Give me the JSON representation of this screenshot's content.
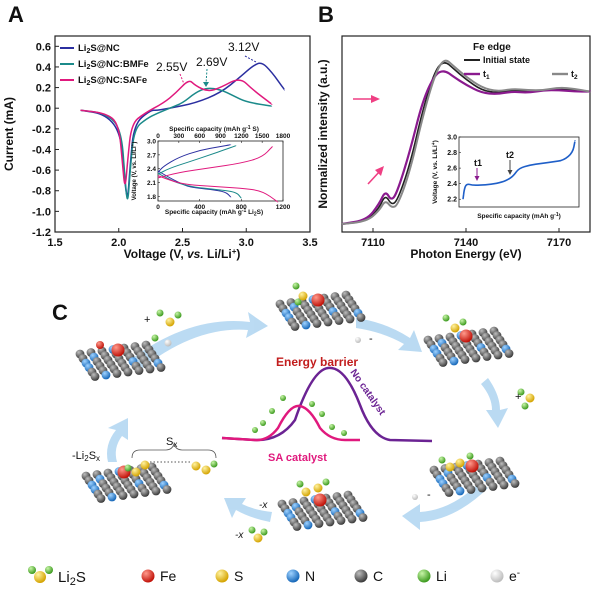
{
  "panels": {
    "a": {
      "letter": "A"
    },
    "b": {
      "letter": "B"
    },
    "c": {
      "letter": "C"
    }
  },
  "chart_data": [
    {
      "panel": "A",
      "type": "line",
      "xlabel": "Voltage (V, vs. Li/Li+)",
      "xlabel_parts": [
        "Voltage (V, ",
        "vs.",
        " Li/Li",
        "+",
        ")"
      ],
      "ylabel": "Current (mA)",
      "xlim": [
        1.5,
        3.5
      ],
      "ylim": [
        -1.2,
        0.7
      ],
      "xticks": [
        "1.5",
        "2.0",
        "2.5",
        "3.0",
        "3.5"
      ],
      "yticks": [
        "-1.2",
        "-1.0",
        "-0.8",
        "-0.6",
        "-0.4",
        "-0.2",
        "0.0",
        "0.2",
        "0.4",
        "0.6"
      ],
      "legend": "top-left",
      "annotations": [
        "2.55V",
        "2.69V",
        "3.12V"
      ],
      "series": [
        {
          "name": "Li2S@NC",
          "legend_parts": [
            "Li",
            "2",
            "S@NC"
          ],
          "color": "#2b2fa0",
          "x": [
            1.7,
            1.9,
            2.02,
            2.05,
            2.07,
            2.09,
            2.12,
            2.25,
            2.3,
            2.4,
            2.6,
            2.8,
            2.95,
            3.05,
            3.12,
            3.2,
            3.3
          ],
          "y": [
            -0.02,
            -0.06,
            -0.25,
            -0.75,
            -0.9,
            -0.55,
            -0.15,
            -0.02,
            -0.02,
            0.0,
            0.05,
            0.15,
            0.3,
            0.41,
            0.45,
            0.35,
            0.18
          ]
        },
        {
          "name": "Li2S@NC:BMFe",
          "legend_parts": [
            "Li",
            "2",
            "S@NC:BMFe"
          ],
          "color": "#1b8a8a",
          "x": [
            1.7,
            1.9,
            2.02,
            2.05,
            2.07,
            2.09,
            2.12,
            2.22,
            2.3,
            2.4,
            2.5,
            2.6,
            2.69,
            2.8,
            2.9,
            3.0,
            3.2
          ],
          "y": [
            -0.02,
            -0.05,
            -0.2,
            -0.7,
            -0.95,
            -0.6,
            -0.2,
            -0.1,
            -0.05,
            0.0,
            0.05,
            0.15,
            0.2,
            0.18,
            0.12,
            0.06,
            0.02
          ]
        },
        {
          "name": "Li2S@NC:SAFe",
          "legend_parts": [
            "Li",
            "2",
            "S@NC:SAFe"
          ],
          "color": "#e0197d",
          "x": [
            1.7,
            1.9,
            2.0,
            2.03,
            2.05,
            2.07,
            2.1,
            2.2,
            2.35,
            2.45,
            2.55,
            2.6,
            2.7,
            2.8,
            2.95,
            3.05,
            3.2
          ],
          "y": [
            -0.02,
            -0.05,
            -0.15,
            -0.55,
            -0.8,
            -0.5,
            -0.15,
            -0.05,
            0.05,
            0.15,
            0.28,
            0.22,
            0.16,
            0.2,
            0.3,
            0.18,
            0.04
          ]
        }
      ]
    },
    {
      "panel": "A-inset",
      "type": "line",
      "xlabel": "Specific capacity (mAh g-1 Li2S)",
      "x2label": "Specific capacity (mAh g-1 S)",
      "ylabel": "Voltage (V, vs. Li/Li+)",
      "xlim": [
        0,
        1200
      ],
      "ylim": [
        1.7,
        3.0
      ],
      "xticks": [
        "0",
        "400",
        "800",
        "1200"
      ],
      "x2ticks": [
        "0",
        "300",
        "600",
        "900",
        "1200",
        "1500",
        "1800"
      ],
      "yticks": [
        "1.8",
        "2.1",
        "2.4",
        "2.7",
        "3.0"
      ],
      "series": [
        {
          "color": "#2b2fa0",
          "charge_x": [
            0,
            50,
            200,
            400,
            600,
            700
          ],
          "charge_y": [
            2.32,
            2.45,
            2.65,
            2.8,
            2.88,
            2.92
          ],
          "discharge_x": [
            0,
            100,
            200,
            300,
            500,
            650,
            700
          ],
          "discharge_y": [
            2.35,
            2.22,
            2.1,
            2.0,
            1.95,
            1.9,
            1.78
          ]
        },
        {
          "color": "#1b8a8a",
          "charge_x": [
            0,
            100,
            300,
            500,
            650,
            750
          ],
          "charge_y": [
            2.28,
            2.4,
            2.55,
            2.7,
            2.82,
            2.9
          ],
          "discharge_x": [
            0,
            100,
            200,
            350,
            550,
            750,
            800
          ],
          "discharge_y": [
            2.3,
            2.18,
            2.08,
            2.0,
            1.95,
            1.9,
            1.76
          ]
        },
        {
          "color": "#e0197d",
          "charge_x": [
            0,
            200,
            500,
            800,
            1000,
            1100
          ],
          "charge_y": [
            2.2,
            2.32,
            2.42,
            2.52,
            2.65,
            2.88
          ],
          "discharge_x": [
            0,
            150,
            300,
            500,
            800,
            1000,
            1150
          ],
          "discharge_y": [
            2.25,
            2.12,
            2.05,
            2.02,
            1.98,
            1.92,
            1.68
          ]
        }
      ]
    },
    {
      "panel": "B",
      "type": "line",
      "xlabel": "Photon Energy (eV)",
      "ylabel": "Normalized intensity (a.u.)",
      "title": "Fe edge",
      "xlim": [
        7100,
        7180
      ],
      "xticks": [
        "7110",
        "7140",
        "7170"
      ],
      "legend": "top-right",
      "series": [
        {
          "name": "Initial state",
          "color": "#222222",
          "x": [
            7100,
            7108,
            7112,
            7114,
            7116,
            7118,
            7122,
            7126,
            7130,
            7133,
            7136,
            7140,
            7145,
            7150,
            7155,
            7160,
            7165,
            7170,
            7175,
            7180
          ],
          "y": [
            0.0,
            0.02,
            0.12,
            0.22,
            0.14,
            0.18,
            0.45,
            0.85,
            1.15,
            1.22,
            1.16,
            1.08,
            1.0,
            0.98,
            1.0,
            0.99,
            1.0,
            1.01,
            1.0,
            0.99
          ]
        },
        {
          "name": "t1",
          "legend_parts": [
            "t",
            "1"
          ],
          "color": "#8a1a8e",
          "x": [
            7100,
            7108,
            7112,
            7114,
            7116,
            7118,
            7122,
            7126,
            7130,
            7133,
            7136,
            7140,
            7145,
            7150,
            7155,
            7160,
            7165,
            7170,
            7175,
            7180
          ],
          "y": [
            0.0,
            0.03,
            0.15,
            0.25,
            0.17,
            0.25,
            0.55,
            0.92,
            1.12,
            1.15,
            1.1,
            1.04,
            0.98,
            0.97,
            0.99,
            0.98,
            1.0,
            1.0,
            0.99,
            0.99
          ]
        },
        {
          "name": "t2",
          "legend_parts": [
            "t",
            "2"
          ],
          "color": "#888888",
          "x": [
            7100,
            7108,
            7112,
            7114,
            7116,
            7118,
            7122,
            7126,
            7130,
            7133,
            7136,
            7140,
            7145,
            7150,
            7155,
            7160,
            7165,
            7170,
            7175,
            7180
          ],
          "y": [
            0.0,
            0.02,
            0.1,
            0.18,
            0.12,
            0.14,
            0.4,
            0.8,
            1.12,
            1.24,
            1.18,
            1.1,
            1.02,
            0.99,
            1.01,
            1.0,
            1.0,
            1.02,
            1.01,
            0.99
          ]
        }
      ]
    },
    {
      "panel": "B-inset",
      "type": "line",
      "xlabel": "Specific capacity (mAh g-1)",
      "ylabel": "Voltage (V, vs. Li/Li+)",
      "ylim": [
        2.1,
        3.0
      ],
      "yticks": [
        "2.2",
        "2.4",
        "2.6",
        "2.8",
        "3.0"
      ],
      "annotations": [
        "t1",
        "t2"
      ],
      "series": [
        {
          "color": "#1f5fc8",
          "x": [
            0,
            1,
            3,
            8,
            15,
            25,
            35,
            40,
            45,
            50,
            60,
            70,
            80,
            90,
            98,
            100
          ],
          "y": [
            2.2,
            2.32,
            2.4,
            2.38,
            2.38,
            2.39,
            2.42,
            2.45,
            2.5,
            2.6,
            2.64,
            2.66,
            2.68,
            2.7,
            2.8,
            2.95
          ]
        }
      ]
    }
  ],
  "panel_c": {
    "energy_barrier": "Energy barrier",
    "no_catalyst": "No catalyst",
    "sa_catalyst": "SA catalyst",
    "sx_label": "Sx",
    "sx_parts": [
      "S",
      "x"
    ],
    "li2sx_label": "-Li2Sx",
    "li2sx_parts": [
      "-Li",
      "2",
      "S",
      "x"
    ],
    "minus_x": "-x",
    "minus_e": "-",
    "plus_e": "+",
    "plus_li": "+",
    "minus_li": "-"
  },
  "legend_c": [
    {
      "icon": "li2s-icon",
      "label": "Li2S",
      "parts": [
        "Li",
        "2",
        "S"
      ]
    },
    {
      "icon": "fe-atom-icon",
      "label": "Fe",
      "color": "#e8281c"
    },
    {
      "icon": "s-atom-icon",
      "label": "S",
      "color": "#f1c400"
    },
    {
      "icon": "n-atom-icon",
      "label": "N",
      "color": "#2f8ad8"
    },
    {
      "icon": "c-atom-icon",
      "label": "C",
      "color": "#6b6b6b"
    },
    {
      "icon": "li-atom-icon",
      "label": "Li",
      "color": "#5ec23a"
    },
    {
      "icon": "electron-icon",
      "label": "e-",
      "parts": [
        "e",
        "-"
      ],
      "color": "#d0d0d0"
    }
  ]
}
